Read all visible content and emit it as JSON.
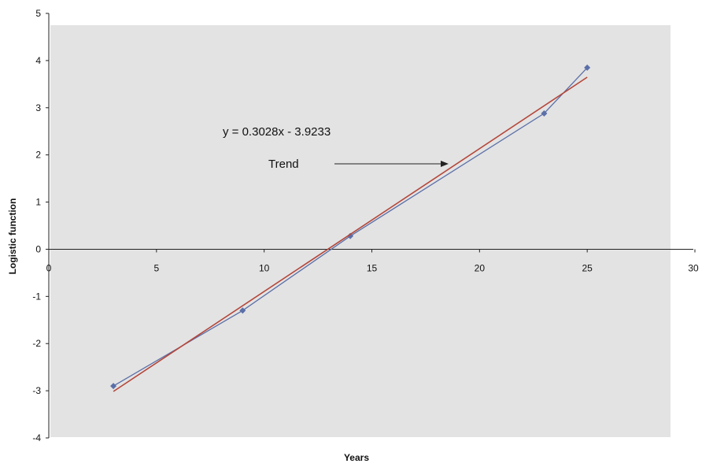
{
  "chart_data": {
    "type": "line",
    "xlabel": "Years",
    "ylabel": "Logistic function",
    "xlim": [
      0,
      30
    ],
    "ylim": [
      -4,
      5
    ],
    "x_ticks": [
      0,
      5,
      10,
      15,
      20,
      25,
      30
    ],
    "y_ticks": [
      -4,
      -3,
      -2,
      -1,
      0,
      1,
      2,
      3,
      4,
      5
    ],
    "grid": false,
    "plot_background": "#e3e3e3",
    "series": [
      {
        "kind": "data",
        "color": "#5b6fa8",
        "marker": "diamond",
        "x": [
          3,
          9,
          14,
          23,
          25
        ],
        "y": [
          -2.9,
          -1.3,
          0.28,
          2.88,
          3.85
        ]
      },
      {
        "kind": "trend",
        "color": "#b5463a",
        "x": [
          3,
          25
        ],
        "y": [
          -3.0149,
          3.6467
        ]
      }
    ],
    "annotations": {
      "equation": "y = 0.3028x - 3.9233",
      "trend_label": "Trend"
    }
  }
}
